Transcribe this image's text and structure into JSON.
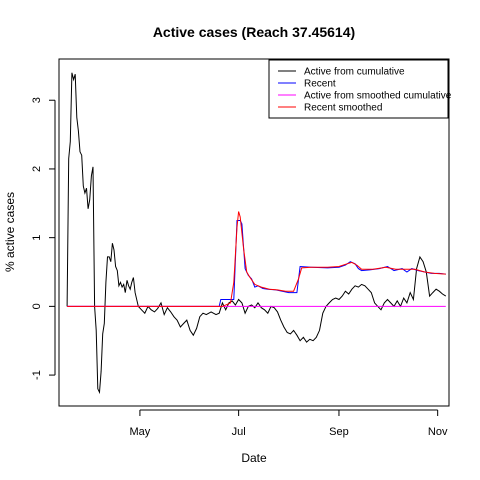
{
  "chart_data": {
    "type": "line",
    "title": "Active cases (Reach 37.45614)",
    "xlabel": "Date",
    "ylabel": "% active cases",
    "x_ticks": [
      "May",
      "Jul",
      "Sep",
      "Nov"
    ],
    "x_tick_dates": [
      "2020-05-01",
      "2020-07-01",
      "2020-09-01",
      "2020-11-01"
    ],
    "xlim": [
      "2020-03-12",
      "2020-11-08"
    ],
    "ylim": [
      -1.45,
      3.6
    ],
    "y_ticks": [
      -1,
      0,
      1,
      2,
      3
    ],
    "grid": false,
    "legend_position": "top-right",
    "series": [
      {
        "name": "Active from cumulative",
        "color": "#000000",
        "points": [
          [
            "2020-03-17",
            0.0
          ],
          [
            "2020-03-18",
            2.15
          ],
          [
            "2020-03-19",
            2.4
          ],
          [
            "2020-03-20",
            3.4
          ],
          [
            "2020-03-21",
            3.3
          ],
          [
            "2020-03-22",
            3.38
          ],
          [
            "2020-03-23",
            2.75
          ],
          [
            "2020-03-24",
            2.55
          ],
          [
            "2020-03-25",
            2.25
          ],
          [
            "2020-03-26",
            2.2
          ],
          [
            "2020-03-27",
            1.75
          ],
          [
            "2020-03-28",
            1.65
          ],
          [
            "2020-03-29",
            1.72
          ],
          [
            "2020-03-30",
            1.42
          ],
          [
            "2020-03-31",
            1.55
          ],
          [
            "2020-04-01",
            1.9
          ],
          [
            "2020-04-02",
            2.03
          ],
          [
            "2020-04-03",
            0.0
          ],
          [
            "2020-04-04",
            -0.35
          ],
          [
            "2020-04-05",
            -1.2
          ],
          [
            "2020-04-06",
            -1.25
          ],
          [
            "2020-04-07",
            -0.95
          ],
          [
            "2020-04-08",
            -0.4
          ],
          [
            "2020-04-09",
            -0.25
          ],
          [
            "2020-04-10",
            0.35
          ],
          [
            "2020-04-11",
            0.72
          ],
          [
            "2020-04-12",
            0.72
          ],
          [
            "2020-04-13",
            0.65
          ],
          [
            "2020-04-14",
            0.92
          ],
          [
            "2020-04-15",
            0.82
          ],
          [
            "2020-04-16",
            0.58
          ],
          [
            "2020-04-17",
            0.52
          ],
          [
            "2020-04-18",
            0.3
          ],
          [
            "2020-04-19",
            0.35
          ],
          [
            "2020-04-20",
            0.28
          ],
          [
            "2020-04-21",
            0.32
          ],
          [
            "2020-04-22",
            0.2
          ],
          [
            "2020-04-23",
            0.38
          ],
          [
            "2020-04-24",
            0.3
          ],
          [
            "2020-04-25",
            0.25
          ],
          [
            "2020-04-26",
            0.35
          ],
          [
            "2020-04-27",
            0.42
          ],
          [
            "2020-04-28",
            0.2
          ],
          [
            "2020-04-30",
            0.0
          ],
          [
            "2020-05-02",
            -0.05
          ],
          [
            "2020-05-04",
            -0.1
          ],
          [
            "2020-05-06",
            0.0
          ],
          [
            "2020-05-08",
            -0.05
          ],
          [
            "2020-05-10",
            -0.08
          ],
          [
            "2020-05-12",
            -0.03
          ],
          [
            "2020-05-14",
            0.05
          ],
          [
            "2020-05-16",
            -0.12
          ],
          [
            "2020-05-18",
            -0.02
          ],
          [
            "2020-05-20",
            -0.08
          ],
          [
            "2020-05-22",
            -0.15
          ],
          [
            "2020-05-24",
            -0.2
          ],
          [
            "2020-05-26",
            -0.3
          ],
          [
            "2020-05-28",
            -0.25
          ],
          [
            "2020-05-30",
            -0.2
          ],
          [
            "2020-06-01",
            -0.35
          ],
          [
            "2020-06-03",
            -0.42
          ],
          [
            "2020-06-05",
            -0.32
          ],
          [
            "2020-06-07",
            -0.15
          ],
          [
            "2020-06-09",
            -0.1
          ],
          [
            "2020-06-11",
            -0.12
          ],
          [
            "2020-06-14",
            -0.08
          ],
          [
            "2020-06-17",
            -0.12
          ],
          [
            "2020-06-19",
            -0.1
          ],
          [
            "2020-06-21",
            0.05
          ],
          [
            "2020-06-23",
            -0.05
          ],
          [
            "2020-06-25",
            0.05
          ],
          [
            "2020-06-27",
            0.08
          ],
          [
            "2020-06-29",
            0.02
          ],
          [
            "2020-07-01",
            0.1
          ],
          [
            "2020-07-03",
            0.05
          ],
          [
            "2020-07-05",
            -0.1
          ],
          [
            "2020-07-07",
            0.0
          ],
          [
            "2020-07-09",
            0.02
          ],
          [
            "2020-07-11",
            -0.02
          ],
          [
            "2020-07-13",
            0.05
          ],
          [
            "2020-07-15",
            -0.02
          ],
          [
            "2020-07-17",
            -0.05
          ],
          [
            "2020-07-19",
            -0.1
          ],
          [
            "2020-07-21",
            0.0
          ],
          [
            "2020-07-23",
            -0.02
          ],
          [
            "2020-07-25",
            -0.08
          ],
          [
            "2020-07-27",
            -0.2
          ],
          [
            "2020-07-29",
            -0.3
          ],
          [
            "2020-07-31",
            -0.38
          ],
          [
            "2020-08-02",
            -0.4
          ],
          [
            "2020-08-04",
            -0.35
          ],
          [
            "2020-08-06",
            -0.42
          ],
          [
            "2020-08-08",
            -0.5
          ],
          [
            "2020-08-10",
            -0.45
          ],
          [
            "2020-08-12",
            -0.52
          ],
          [
            "2020-08-14",
            -0.48
          ],
          [
            "2020-08-16",
            -0.5
          ],
          [
            "2020-08-18",
            -0.45
          ],
          [
            "2020-08-20",
            -0.35
          ],
          [
            "2020-08-22",
            -0.1
          ],
          [
            "2020-08-24",
            0.0
          ],
          [
            "2020-08-26",
            0.05
          ],
          [
            "2020-08-28",
            0.1
          ],
          [
            "2020-08-30",
            0.12
          ],
          [
            "2020-09-01",
            0.1
          ],
          [
            "2020-09-03",
            0.15
          ],
          [
            "2020-09-05",
            0.22
          ],
          [
            "2020-09-07",
            0.18
          ],
          [
            "2020-09-09",
            0.25
          ],
          [
            "2020-09-11",
            0.3
          ],
          [
            "2020-09-13",
            0.28
          ],
          [
            "2020-09-15",
            0.32
          ],
          [
            "2020-09-17",
            0.3
          ],
          [
            "2020-09-19",
            0.25
          ],
          [
            "2020-09-21",
            0.2
          ],
          [
            "2020-09-23",
            0.05
          ],
          [
            "2020-09-25",
            0.0
          ],
          [
            "2020-09-27",
            -0.05
          ],
          [
            "2020-09-29",
            0.05
          ],
          [
            "2020-10-01",
            0.1
          ],
          [
            "2020-10-03",
            0.05
          ],
          [
            "2020-10-05",
            0.0
          ],
          [
            "2020-10-07",
            0.08
          ],
          [
            "2020-10-09",
            0.0
          ],
          [
            "2020-10-11",
            0.12
          ],
          [
            "2020-10-13",
            0.05
          ],
          [
            "2020-10-15",
            0.2
          ],
          [
            "2020-10-17",
            0.1
          ],
          [
            "2020-10-19",
            0.55
          ],
          [
            "2020-10-21",
            0.72
          ],
          [
            "2020-10-23",
            0.65
          ],
          [
            "2020-10-25",
            0.5
          ],
          [
            "2020-10-27",
            0.15
          ],
          [
            "2020-10-29",
            0.2
          ],
          [
            "2020-10-31",
            0.25
          ],
          [
            "2020-11-02",
            0.22
          ],
          [
            "2020-11-04",
            0.18
          ],
          [
            "2020-11-06",
            0.15
          ]
        ]
      },
      {
        "name": "Recent",
        "color": "#0000ff",
        "points": [
          [
            "2020-03-17",
            0.0
          ],
          [
            "2020-06-19",
            0.0
          ],
          [
            "2020-06-20",
            0.1
          ],
          [
            "2020-06-28",
            0.1
          ],
          [
            "2020-06-30",
            1.25
          ],
          [
            "2020-07-02",
            1.25
          ],
          [
            "2020-07-03",
            1.2
          ],
          [
            "2020-07-05",
            0.55
          ],
          [
            "2020-07-07",
            0.45
          ],
          [
            "2020-07-09",
            0.4
          ],
          [
            "2020-07-11",
            0.28
          ],
          [
            "2020-07-13",
            0.3
          ],
          [
            "2020-07-16",
            0.26
          ],
          [
            "2020-07-19",
            0.25
          ],
          [
            "2020-07-24",
            0.24
          ],
          [
            "2020-07-28",
            0.22
          ],
          [
            "2020-08-01",
            0.2
          ],
          [
            "2020-08-04",
            0.2
          ],
          [
            "2020-08-06",
            0.2
          ],
          [
            "2020-08-08",
            0.58
          ],
          [
            "2020-08-15",
            0.57
          ],
          [
            "2020-08-25",
            0.56
          ],
          [
            "2020-09-01",
            0.57
          ],
          [
            "2020-09-05",
            0.6
          ],
          [
            "2020-09-08",
            0.65
          ],
          [
            "2020-09-11",
            0.62
          ],
          [
            "2020-09-13",
            0.55
          ],
          [
            "2020-09-15",
            0.52
          ],
          [
            "2020-09-20",
            0.53
          ],
          [
            "2020-09-26",
            0.55
          ],
          [
            "2020-10-01",
            0.58
          ],
          [
            "2020-10-05",
            0.52
          ],
          [
            "2020-10-10",
            0.55
          ],
          [
            "2020-10-13",
            0.5
          ],
          [
            "2020-10-16",
            0.55
          ],
          [
            "2020-10-20",
            0.52
          ],
          [
            "2020-10-24",
            0.5
          ],
          [
            "2020-10-28",
            0.48
          ],
          [
            "2020-11-02",
            0.48
          ],
          [
            "2020-11-06",
            0.47
          ]
        ]
      },
      {
        "name": "Active from smoothed cumulative",
        "color": "#ff00ff",
        "points": [
          [
            "2020-03-17",
            0.0
          ],
          [
            "2020-11-06",
            0.0
          ]
        ]
      },
      {
        "name": "Recent smoothed",
        "color": "#ff0000",
        "points": [
          [
            "2020-03-17",
            0.0
          ],
          [
            "2020-06-21",
            0.0
          ],
          [
            "2020-06-26",
            0.05
          ],
          [
            "2020-06-28",
            0.35
          ],
          [
            "2020-06-30",
            1.15
          ],
          [
            "2020-07-01",
            1.38
          ],
          [
            "2020-07-02",
            1.3
          ],
          [
            "2020-07-04",
            0.85
          ],
          [
            "2020-07-06",
            0.5
          ],
          [
            "2020-07-08",
            0.42
          ],
          [
            "2020-07-11",
            0.32
          ],
          [
            "2020-07-15",
            0.28
          ],
          [
            "2020-07-20",
            0.25
          ],
          [
            "2020-07-25",
            0.24
          ],
          [
            "2020-07-30",
            0.22
          ],
          [
            "2020-08-04",
            0.22
          ],
          [
            "2020-08-07",
            0.4
          ],
          [
            "2020-08-09",
            0.56
          ],
          [
            "2020-08-15",
            0.57
          ],
          [
            "2020-08-25",
            0.57
          ],
          [
            "2020-09-01",
            0.58
          ],
          [
            "2020-09-06",
            0.62
          ],
          [
            "2020-09-09",
            0.64
          ],
          [
            "2020-09-12",
            0.6
          ],
          [
            "2020-09-15",
            0.54
          ],
          [
            "2020-09-22",
            0.54
          ],
          [
            "2020-09-30",
            0.57
          ],
          [
            "2020-10-06",
            0.54
          ],
          [
            "2020-10-12",
            0.54
          ],
          [
            "2020-10-18",
            0.54
          ],
          [
            "2020-10-24",
            0.5
          ],
          [
            "2020-10-30",
            0.48
          ],
          [
            "2020-11-06",
            0.47
          ]
        ]
      }
    ]
  }
}
